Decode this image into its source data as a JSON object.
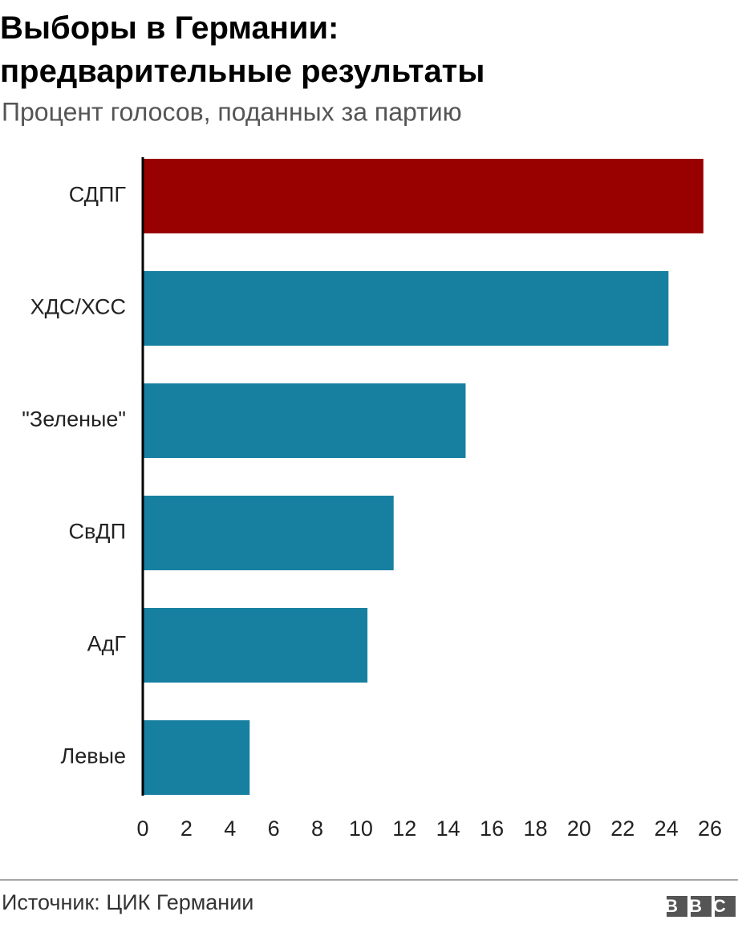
{
  "chart_data": {
    "type": "bar",
    "orientation": "horizontal",
    "title": "Выборы в Германии: предварительные результаты",
    "subtitle": "Процент голосов, поданных за партию",
    "categories": [
      "СДПГ",
      "ХДС/ХСС",
      "\"Зеленые\"",
      "СвДП",
      "АдГ",
      "Левые"
    ],
    "values": [
      25.7,
      24.1,
      14.8,
      11.5,
      10.3,
      4.9
    ],
    "colors": [
      "#990000",
      "#1780a1",
      "#1780a1",
      "#1780a1",
      "#1780a1",
      "#1780a1"
    ],
    "xlim": [
      0,
      26
    ],
    "xticks": [
      0,
      2,
      4,
      6,
      8,
      10,
      12,
      14,
      16,
      18,
      20,
      22,
      24,
      26
    ],
    "source": "Источник: ЦИК Германии",
    "logo": "BBC"
  }
}
